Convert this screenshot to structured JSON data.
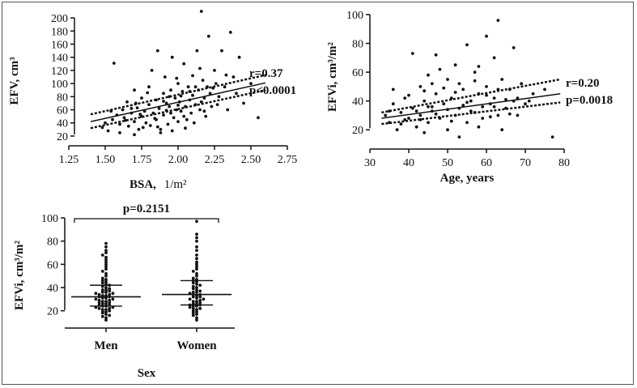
{
  "chart_data": [
    {
      "id": "bsa",
      "type": "scatter",
      "xlabel": "BSA,",
      "xunit": "1/m²",
      "ylabel": "EFV, cm³",
      "xlim": [
        1.25,
        2.75
      ],
      "ylim": [
        15,
        210
      ],
      "xticks": [
        "1.25",
        "1.50",
        "1.75",
        "2.00",
        "2.25",
        "2.50",
        "2.75"
      ],
      "xtick_values": [
        1.25,
        1.5,
        1.75,
        2.0,
        2.25,
        2.5,
        2.75
      ],
      "yticks": [
        "20",
        "40",
        "60",
        "80",
        "100",
        "120",
        "140",
        "160",
        "180",
        "200"
      ],
      "ytick_values": [
        20,
        40,
        60,
        80,
        100,
        120,
        140,
        160,
        180,
        200
      ],
      "regression": {
        "x": [
          1.4,
          2.6
        ],
        "y": [
          42,
          101
        ],
        "upper": [
          53,
          113
        ],
        "lower": [
          32,
          90
        ]
      },
      "annotations": [
        "r=0.37",
        "p<0.0001"
      ],
      "points": [
        [
          1.48,
          33
        ],
        [
          1.5,
          40
        ],
        [
          1.52,
          28
        ],
        [
          1.55,
          45
        ],
        [
          1.56,
          131
        ],
        [
          1.58,
          52
        ],
        [
          1.6,
          38
        ],
        [
          1.62,
          60
        ],
        [
          1.63,
          48
        ],
        [
          1.65,
          72
        ],
        [
          1.66,
          35
        ],
        [
          1.68,
          55
        ],
        [
          1.7,
          42
        ],
        [
          1.7,
          90
        ],
        [
          1.72,
          63
        ],
        [
          1.73,
          30
        ],
        [
          1.75,
          50
        ],
        [
          1.75,
          78
        ],
        [
          1.77,
          58
        ],
        [
          1.78,
          40
        ],
        [
          1.8,
          68
        ],
        [
          1.8,
          95
        ],
        [
          1.81,
          36
        ],
        [
          1.82,
          120
        ],
        [
          1.83,
          55
        ],
        [
          1.85,
          75
        ],
        [
          1.85,
          45
        ],
        [
          1.86,
          150
        ],
        [
          1.87,
          62
        ],
        [
          1.88,
          30
        ],
        [
          1.9,
          85
        ],
        [
          1.9,
          52
        ],
        [
          1.91,
          110
        ],
        [
          1.92,
          70
        ],
        [
          1.93,
          38
        ],
        [
          1.94,
          65
        ],
        [
          1.95,
          90
        ],
        [
          1.95,
          55
        ],
        [
          1.96,
          140
        ],
        [
          1.97,
          48
        ],
        [
          1.98,
          78
        ],
        [
          1.99,
          60
        ],
        [
          2.0,
          100
        ],
        [
          2.0,
          42
        ],
        [
          2.01,
          72
        ],
        [
          2.02,
          58
        ],
        [
          2.03,
          88
        ],
        [
          2.04,
          130
        ],
        [
          2.05,
          65
        ],
        [
          2.06,
          45
        ],
        [
          2.07,
          95
        ],
        [
          2.08,
          75
        ],
        [
          2.09,
          55
        ],
        [
          2.1,
          112
        ],
        [
          2.1,
          82
        ],
        [
          2.11,
          40
        ],
        [
          2.12,
          68
        ],
        [
          2.13,
          150
        ],
        [
          2.14,
          90
        ],
        [
          2.15,
          60
        ],
        [
          2.16,
          210
        ],
        [
          2.17,
          105
        ],
        [
          2.18,
          78
        ],
        [
          2.19,
          50
        ],
        [
          2.2,
          95
        ],
        [
          2.21,
          172
        ],
        [
          2.22,
          85
        ],
        [
          2.23,
          65
        ],
        [
          2.25,
          120
        ],
        [
          2.26,
          100
        ],
        [
          2.28,
          80
        ],
        [
          2.3,
          150
        ],
        [
          2.32,
          95
        ],
        [
          2.34,
          60
        ],
        [
          2.36,
          178
        ],
        [
          2.38,
          110
        ],
        [
          2.4,
          85
        ],
        [
          2.42,
          140
        ],
        [
          2.45,
          70
        ],
        [
          2.5,
          100
        ],
        [
          2.55,
          48
        ],
        [
          1.6,
          25
        ],
        [
          1.7,
          22
        ],
        [
          1.88,
          25
        ],
        [
          1.96,
          28
        ],
        [
          2.05,
          32
        ],
        [
          1.76,
          33
        ],
        [
          1.84,
          47
        ],
        [
          1.92,
          59
        ],
        [
          2.0,
          67
        ],
        [
          2.08,
          88
        ],
        [
          2.16,
          72
        ],
        [
          2.24,
          93
        ],
        [
          1.68,
          62
        ],
        [
          1.54,
          58
        ],
        [
          1.64,
          44
        ],
        [
          1.74,
          53
        ],
        [
          1.9,
          73
        ],
        [
          2.02,
          81
        ],
        [
          2.12,
          95
        ],
        [
          1.79,
          86
        ],
        [
          1.99,
          108
        ],
        [
          2.15,
          123
        ],
        [
          2.27,
          68
        ],
        [
          2.33,
          113
        ],
        [
          1.86,
          34
        ],
        [
          1.94,
          80
        ],
        [
          2.04,
          50
        ],
        [
          2.18,
          58
        ],
        [
          1.71,
          70
        ]
      ]
    },
    {
      "id": "age",
      "type": "scatter",
      "xlabel": "Age, years",
      "ylabel": "EFVi, cm³/m²",
      "xlim": [
        30,
        80
      ],
      "ylim": [
        10,
        100
      ],
      "xticks": [
        "30",
        "40",
        "50",
        "60",
        "70",
        "80"
      ],
      "xtick_values": [
        30,
        40,
        50,
        60,
        70,
        80
      ],
      "yticks": [
        "20",
        "40",
        "60",
        "80",
        "100"
      ],
      "ytick_values": [
        20,
        40,
        60,
        80,
        100
      ],
      "regression": {
        "x": [
          33,
          79
        ],
        "y": [
          28,
          45
        ],
        "upper": [
          32,
          55
        ],
        "lower": [
          24,
          39
        ]
      },
      "annotations": [
        "r=0.20",
        "p=0.0018"
      ],
      "points": [
        [
          34,
          30
        ],
        [
          35,
          25
        ],
        [
          36,
          38
        ],
        [
          37,
          20
        ],
        [
          38,
          32
        ],
        [
          39,
          42
        ],
        [
          40,
          28
        ],
        [
          41,
          73
        ],
        [
          41,
          35
        ],
        [
          42,
          22
        ],
        [
          43,
          50
        ],
        [
          43,
          30
        ],
        [
          44,
          40
        ],
        [
          45,
          58
        ],
        [
          45,
          25
        ],
        [
          46,
          33
        ],
        [
          47,
          72
        ],
        [
          47,
          45
        ],
        [
          48,
          28
        ],
        [
          49,
          38
        ],
        [
          50,
          55
        ],
        [
          50,
          20
        ],
        [
          51,
          42
        ],
        [
          52,
          30
        ],
        [
          52,
          65
        ],
        [
          53,
          35
        ],
        [
          54,
          48
        ],
        [
          55,
          79
        ],
        [
          55,
          25
        ],
        [
          56,
          40
        ],
        [
          57,
          60
        ],
        [
          57,
          32
        ],
        [
          58,
          45
        ],
        [
          59,
          28
        ],
        [
          60,
          85
        ],
        [
          60,
          50
        ],
        [
          61,
          38
        ],
        [
          62,
          70
        ],
        [
          62,
          42
        ],
        [
          63,
          96
        ],
        [
          63,
          30
        ],
        [
          64,
          55
        ],
        [
          65,
          35
        ],
        [
          66,
          48
        ],
        [
          67,
          77
        ],
        [
          67,
          40
        ],
        [
          68,
          30
        ],
        [
          69,
          52
        ],
        [
          70,
          38
        ],
        [
          72,
          45
        ],
        [
          75,
          48
        ],
        [
          77,
          15
        ],
        [
          36,
          48
        ],
        [
          44,
          18
        ],
        [
          48,
          62
        ],
        [
          53,
          15
        ],
        [
          58,
          22
        ],
        [
          64,
          20
        ],
        [
          39,
          27
        ],
        [
          46,
          36
        ],
        [
          51,
          26
        ],
        [
          56,
          33
        ],
        [
          61,
          29
        ],
        [
          66,
          31
        ],
        [
          42,
          33
        ],
        [
          47,
          31
        ],
        [
          54,
          37
        ],
        [
          59,
          36
        ],
        [
          65,
          41
        ],
        [
          71,
          40
        ],
        [
          40,
          44
        ],
        [
          45,
          36
        ],
        [
          50,
          34
        ],
        [
          55,
          39
        ],
        [
          60,
          44
        ],
        [
          49,
          49
        ],
        [
          53,
          52
        ],
        [
          57,
          54
        ],
        [
          43,
          27
        ],
        [
          38,
          24
        ],
        [
          62,
          36
        ],
        [
          68,
          42
        ],
        [
          52,
          46
        ],
        [
          46,
          52
        ],
        [
          58,
          64
        ],
        [
          35,
          33
        ],
        [
          44,
          47
        ],
        [
          63,
          48
        ]
      ]
    },
    {
      "id": "sex",
      "type": "scatter",
      "subtype": "dot-plot",
      "xlabel": "Sex",
      "ylabel": "EFVi, cm³/m²",
      "ylim": [
        10,
        100
      ],
      "yticks": [
        "20",
        "40",
        "60",
        "80",
        "100"
      ],
      "ytick_values": [
        20,
        40,
        60,
        80,
        100
      ],
      "categories": [
        "Men",
        "Women"
      ],
      "medians": [
        32,
        34
      ],
      "iqr": [
        [
          24,
          42
        ],
        [
          25,
          46
        ]
      ],
      "annotations": [
        "p=0.2151"
      ],
      "groups": [
        [
          12,
          14,
          15,
          16,
          17,
          18,
          19,
          19,
          20,
          21,
          21,
          22,
          22,
          23,
          23,
          24,
          24,
          25,
          25,
          26,
          26,
          27,
          27,
          28,
          28,
          29,
          29,
          30,
          30,
          31,
          31,
          32,
          32,
          33,
          33,
          34,
          34,
          35,
          35,
          36,
          36,
          37,
          38,
          38,
          39,
          40,
          41,
          42,
          43,
          44,
          45,
          46,
          47,
          48,
          50,
          52,
          54,
          56,
          58,
          60,
          62,
          64,
          66,
          68,
          70,
          72,
          75,
          78
        ],
        [
          12,
          14,
          16,
          17,
          18,
          19,
          20,
          21,
          22,
          22,
          23,
          24,
          24,
          25,
          25,
          26,
          26,
          27,
          28,
          28,
          29,
          30,
          30,
          31,
          32,
          32,
          33,
          34,
          34,
          35,
          36,
          36,
          37,
          38,
          39,
          40,
          41,
          42,
          43,
          44,
          45,
          46,
          47,
          48,
          50,
          52,
          54,
          56,
          58,
          60,
          62,
          65,
          68,
          72,
          75,
          80,
          83,
          86,
          97
        ]
      ]
    }
  ]
}
